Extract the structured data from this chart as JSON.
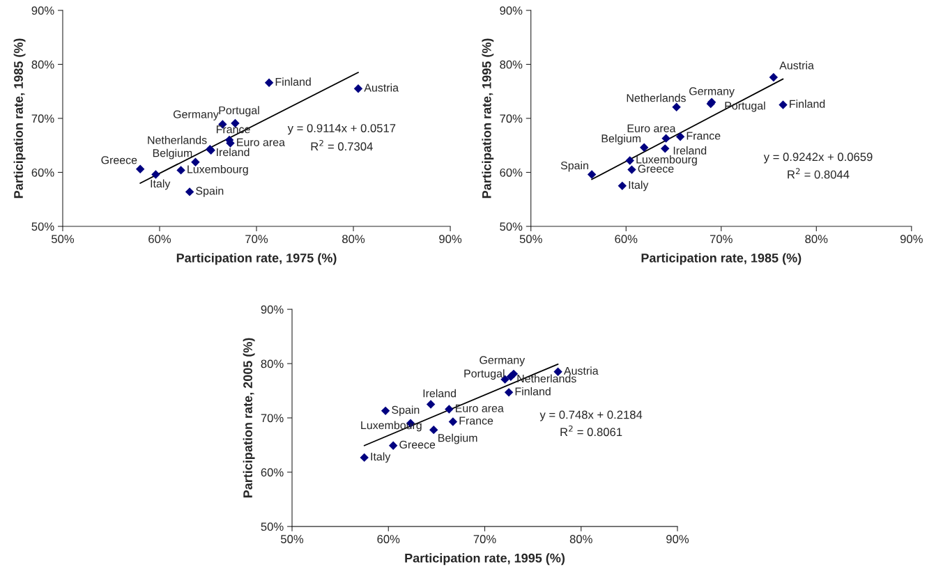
{
  "chart_data": [
    {
      "type": "scatter",
      "xlabel": "Participation rate, 1975 (%)",
      "ylabel": "Participation rate, 1985 (%)",
      "xlim": [
        50,
        90
      ],
      "ylim": [
        50,
        90
      ],
      "xticks": [
        {
          "value": 50,
          "label": "50%"
        },
        {
          "value": 60,
          "label": "60%"
        },
        {
          "value": 70,
          "label": "70%"
        },
        {
          "value": 80,
          "label": "80%"
        },
        {
          "value": 90,
          "label": "90%"
        }
      ],
      "yticks": [
        {
          "value": 50,
          "label": "50%"
        },
        {
          "value": 60,
          "label": "60%"
        },
        {
          "value": 70,
          "label": "70%"
        },
        {
          "value": 80,
          "label": "80%"
        },
        {
          "value": 90,
          "label": "90%"
        }
      ],
      "series": [
        {
          "color": "#000080",
          "marker": "diamond",
          "x": [
            58.0,
            59.6,
            62.2,
            63.1,
            63.7,
            65.2,
            65.3,
            66.5,
            67.8,
            67.2,
            67.3,
            71.3,
            80.5
          ],
          "values": [
            60.6,
            59.6,
            60.4,
            56.4,
            61.9,
            64.3,
            64.1,
            68.9,
            69.1,
            66.0,
            65.4,
            76.6,
            75.5
          ]
        },
        {
          "type": "line",
          "color": "#000000",
          "x": [
            58.0,
            80.5
          ],
          "values": [
            58.0,
            78.5
          ]
        }
      ],
      "annotations": [
        {
          "text": "Greece",
          "x": 58.0,
          "y": 60.6
        },
        {
          "text": "Italy",
          "x": 59.6,
          "y": 59.6
        },
        {
          "text": "Luxembourg",
          "x": 62.2,
          "y": 60.4
        },
        {
          "text": "Spain",
          "x": 63.1,
          "y": 56.4
        },
        {
          "text": "Belgium",
          "x": 63.7,
          "y": 61.9
        },
        {
          "text": "Netherlands",
          "x": 65.2,
          "y": 64.3
        },
        {
          "text": "Ireland",
          "x": 65.3,
          "y": 64.1
        },
        {
          "text": "Germany",
          "x": 66.5,
          "y": 68.9
        },
        {
          "text": "Portugal",
          "x": 67.8,
          "y": 69.1
        },
        {
          "text": "France",
          "x": 67.2,
          "y": 66.0
        },
        {
          "text": "Euro area",
          "x": 67.3,
          "y": 65.4
        },
        {
          "text": "Finland",
          "x": 71.3,
          "y": 76.6
        },
        {
          "text": "Austria",
          "x": 80.5,
          "y": 75.5
        },
        "y = 0.9114x + 0.0517",
        "R$^{2}$ = 0.7304"
      ]
    },
    {
      "type": "scatter",
      "xlabel": "Participation rate, 1985 (%)",
      "ylabel": "Participation rate, 1995 (%)",
      "xlim": [
        50,
        90
      ],
      "ylim": [
        50,
        90
      ],
      "xticks": [
        {
          "value": 50,
          "label": "50%"
        },
        {
          "value": 60,
          "label": "60%"
        },
        {
          "value": 70,
          "label": "70%"
        },
        {
          "value": 80,
          "label": "80%"
        },
        {
          "value": 90,
          "label": "90%"
        }
      ],
      "yticks": [
        {
          "value": 50,
          "label": "50%"
        },
        {
          "value": 60,
          "label": "60%"
        },
        {
          "value": 70,
          "label": "70%"
        },
        {
          "value": 80,
          "label": "80%"
        },
        {
          "value": 90,
          "label": "90%"
        }
      ],
      "series": [
        {
          "color": "#000080",
          "marker": "diamond",
          "x": [
            56.4,
            59.6,
            60.6,
            60.4,
            61.9,
            64.1,
            64.2,
            65.7,
            65.3,
            69.0,
            68.9,
            76.5,
            75.5
          ],
          "values": [
            59.6,
            57.5,
            60.5,
            62.2,
            64.6,
            64.4,
            66.3,
            66.6,
            72.1,
            73.0,
            72.7,
            72.5,
            77.6
          ]
        },
        {
          "type": "line",
          "color": "#000000",
          "x": [
            56.4,
            76.5
          ],
          "values": [
            58.7,
            77.3
          ]
        }
      ],
      "annotations": [
        {
          "text": "Spain",
          "x": 56.4,
          "y": 59.6
        },
        {
          "text": "Italy",
          "x": 59.6,
          "y": 57.5
        },
        {
          "text": "Greece",
          "x": 60.6,
          "y": 60.5
        },
        {
          "text": "Luxembourg",
          "x": 60.4,
          "y": 62.2
        },
        {
          "text": "Belgium",
          "x": 61.9,
          "y": 64.6
        },
        {
          "text": "Ireland",
          "x": 64.1,
          "y": 64.4
        },
        {
          "text": "Euro area",
          "x": 64.2,
          "y": 66.3
        },
        {
          "text": "France",
          "x": 65.7,
          "y": 66.6
        },
        {
          "text": "Netherlands",
          "x": 65.3,
          "y": 72.1
        },
        {
          "text": "Germany",
          "x": 69.0,
          "y": 73.0
        },
        {
          "text": "Portugal",
          "x": 68.9,
          "y": 72.7
        },
        {
          "text": "Finland",
          "x": 76.5,
          "y": 72.5
        },
        {
          "text": "Austria",
          "x": 75.5,
          "y": 77.6
        },
        "y = 0.9242x + 0.0659",
        "R$^{2}$ = 0.8044"
      ]
    },
    {
      "type": "scatter",
      "xlabel": "Participation rate, 1995 (%)",
      "ylabel": "Participation rate, 2005 (%)",
      "xlim": [
        50,
        90
      ],
      "ylim": [
        50,
        90
      ],
      "xticks": [
        {
          "value": 50,
          "label": "50%"
        },
        {
          "value": 60,
          "label": "60%"
        },
        {
          "value": 70,
          "label": "70%"
        },
        {
          "value": 80,
          "label": "80%"
        },
        {
          "value": 90,
          "label": "90%"
        }
      ],
      "yticks": [
        {
          "value": 50,
          "label": "50%"
        },
        {
          "value": 60,
          "label": "60%"
        },
        {
          "value": 70,
          "label": "70%"
        },
        {
          "value": 80,
          "label": "80%"
        },
        {
          "value": 90,
          "label": "90%"
        }
      ],
      "series": [
        {
          "color": "#000080",
          "marker": "diamond",
          "x": [
            57.5,
            60.5,
            59.7,
            62.3,
            64.7,
            64.4,
            66.3,
            66.7,
            72.5,
            72.1,
            72.7,
            73.0,
            77.6
          ],
          "values": [
            62.7,
            64.9,
            71.3,
            69.0,
            67.8,
            72.5,
            71.6,
            69.3,
            74.7,
            77.1,
            77.6,
            78.1,
            78.5
          ]
        },
        {
          "type": "line",
          "color": "#000000",
          "x": [
            57.5,
            77.6
          ],
          "values": [
            64.9,
            79.9
          ]
        }
      ],
      "annotations": [
        {
          "text": "Italy",
          "x": 57.5,
          "y": 62.7
        },
        {
          "text": "Greece",
          "x": 60.5,
          "y": 64.9
        },
        {
          "text": "Spain",
          "x": 59.7,
          "y": 71.3
        },
        {
          "text": "Luxembourg",
          "x": 62.3,
          "y": 69.0
        },
        {
          "text": "Belgium",
          "x": 64.7,
          "y": 67.8
        },
        {
          "text": "Ireland",
          "x": 64.4,
          "y": 72.5
        },
        {
          "text": "Euro area",
          "x": 66.3,
          "y": 71.6
        },
        {
          "text": "France",
          "x": 66.7,
          "y": 69.3
        },
        {
          "text": "Finland",
          "x": 72.5,
          "y": 74.7
        },
        {
          "text": "Portugal",
          "x": 72.1,
          "y": 77.1
        },
        {
          "text": "Netherlands",
          "x": 72.7,
          "y": 77.6
        },
        {
          "text": "Germany",
          "x": 73.0,
          "y": 78.1
        },
        {
          "text": "Austria",
          "x": 77.6,
          "y": 78.5
        },
        "y = 0.748x + 0.2184",
        "R$^{2}$ = 0.8061"
      ]
    }
  ]
}
